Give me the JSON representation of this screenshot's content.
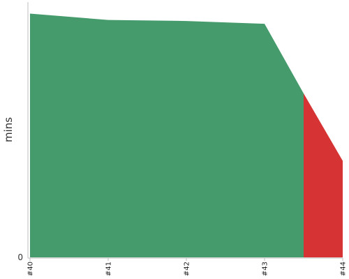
{
  "chart_data": {
    "type": "area",
    "categories": [
      "#40",
      "#41",
      "#42",
      "#43",
      "#44"
    ],
    "title": "",
    "xlabel": "",
    "ylabel": "mins",
    "y_ticks": [
      "0"
    ],
    "ylim": [
      0,
      100
    ],
    "grid": false,
    "legend": "none",
    "colors": {
      "pass": "#459b6c",
      "fail": "#d63434"
    },
    "series": [
      {
        "points": [
          {
            "x": 0,
            "y": 95.5
          },
          {
            "x": 1,
            "y": 93.0
          },
          {
            "x": 2,
            "y": 92.6
          },
          {
            "x": 3,
            "y": 91.5
          },
          {
            "x": 3.5,
            "y": 64.2
          }
        ],
        "color": "#459b6c"
      },
      {
        "points": [
          {
            "x": 3.5,
            "y": 64.2
          },
          {
            "x": 4,
            "y": 37.8
          }
        ],
        "color": "#d63434"
      }
    ]
  }
}
